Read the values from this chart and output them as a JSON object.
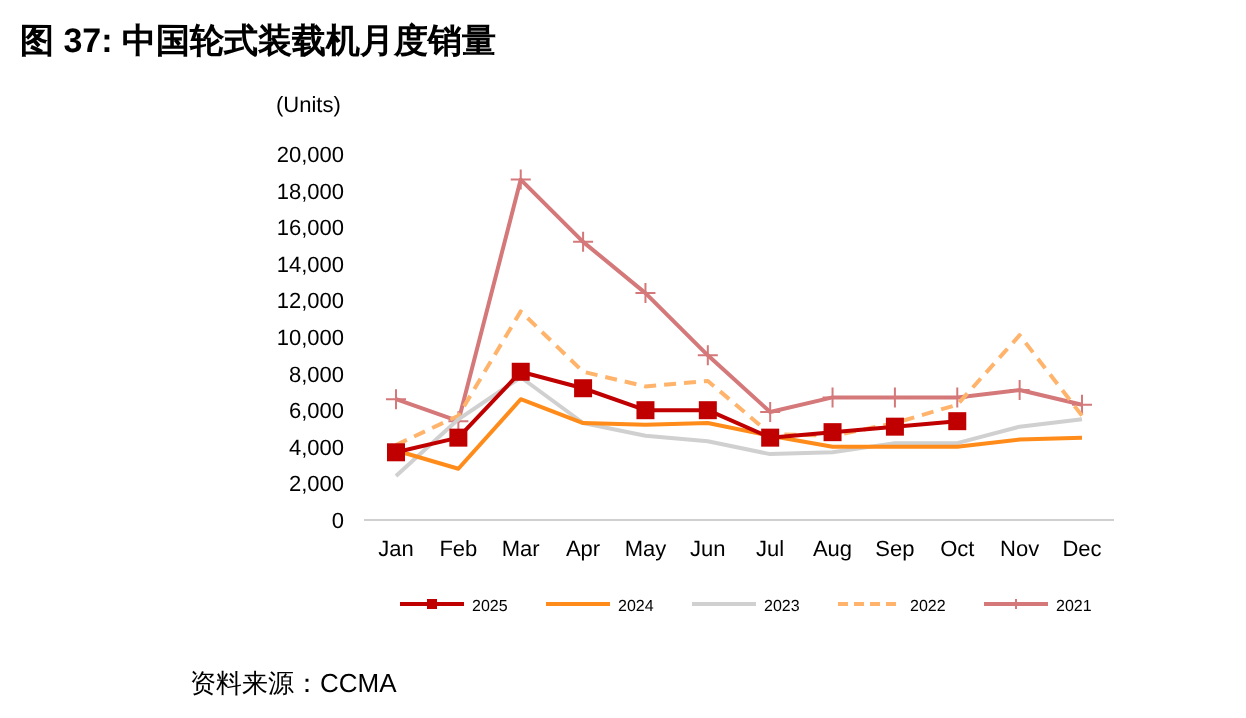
{
  "chart_data": {
    "type": "line",
    "title": "图 37: 中国轮式装载机月度销量",
    "ylabel": "(Units)",
    "categories": [
      "Jan",
      "Feb",
      "Mar",
      "Apr",
      "May",
      "Jun",
      "Jul",
      "Aug",
      "Sep",
      "Oct",
      "Nov",
      "Dec"
    ],
    "series": [
      {
        "name": "2025",
        "color": "#c00000",
        "marker": "square",
        "line_style": "solid",
        "values": [
          3700,
          4500,
          8100,
          7200,
          6000,
          6000,
          4500,
          4800,
          5100,
          5400,
          null,
          null
        ]
      },
      {
        "name": "2024",
        "color": "#ff8c1a",
        "marker": "none",
        "line_style": "solid",
        "values": [
          3800,
          2800,
          6600,
          5300,
          5200,
          5300,
          4600,
          4000,
          4000,
          4000,
          4400,
          4500
        ]
      },
      {
        "name": "2023",
        "color": "#d0d0d0",
        "marker": "none",
        "line_style": "solid",
        "values": [
          2400,
          5500,
          7800,
          5300,
          4600,
          4300,
          3600,
          3700,
          4200,
          4200,
          5100,
          5500
        ]
      },
      {
        "name": "2022",
        "color": "#ffb36b",
        "marker": "none",
        "line_style": "dashed",
        "values": [
          4100,
          5700,
          11400,
          8100,
          7300,
          7600,
          4700,
          4600,
          5300,
          6300,
          10100,
          5700
        ]
      },
      {
        "name": "2021",
        "color": "#d4787a",
        "marker": "cross",
        "line_style": "solid",
        "values": [
          6600,
          5400,
          18600,
          15200,
          12400,
          9000,
          5900,
          6700,
          6700,
          6700,
          7100,
          6300
        ]
      }
    ],
    "ylim": [
      0,
      20000
    ],
    "yticks": [
      0,
      {
        "value": 2000,
        "label": "2,000"
      },
      {
        "value": 4000,
        "label": "4,000"
      },
      {
        "value": 6000,
        "label": "6,000"
      },
      {
        "value": 8000,
        "label": "8,000"
      },
      {
        "value": 10000,
        "label": "10,000"
      },
      {
        "value": 12000,
        "label": "12,000"
      },
      {
        "value": 14000,
        "label": "14,000"
      },
      {
        "value": 16000,
        "label": "16,000"
      },
      {
        "value": 18000,
        "label": "18,000"
      },
      {
        "value": 20000,
        "label": "20,000"
      }
    ],
    "grid": false,
    "legend": "bottom",
    "annotations": [
      "资料来源：CCMA"
    ]
  }
}
